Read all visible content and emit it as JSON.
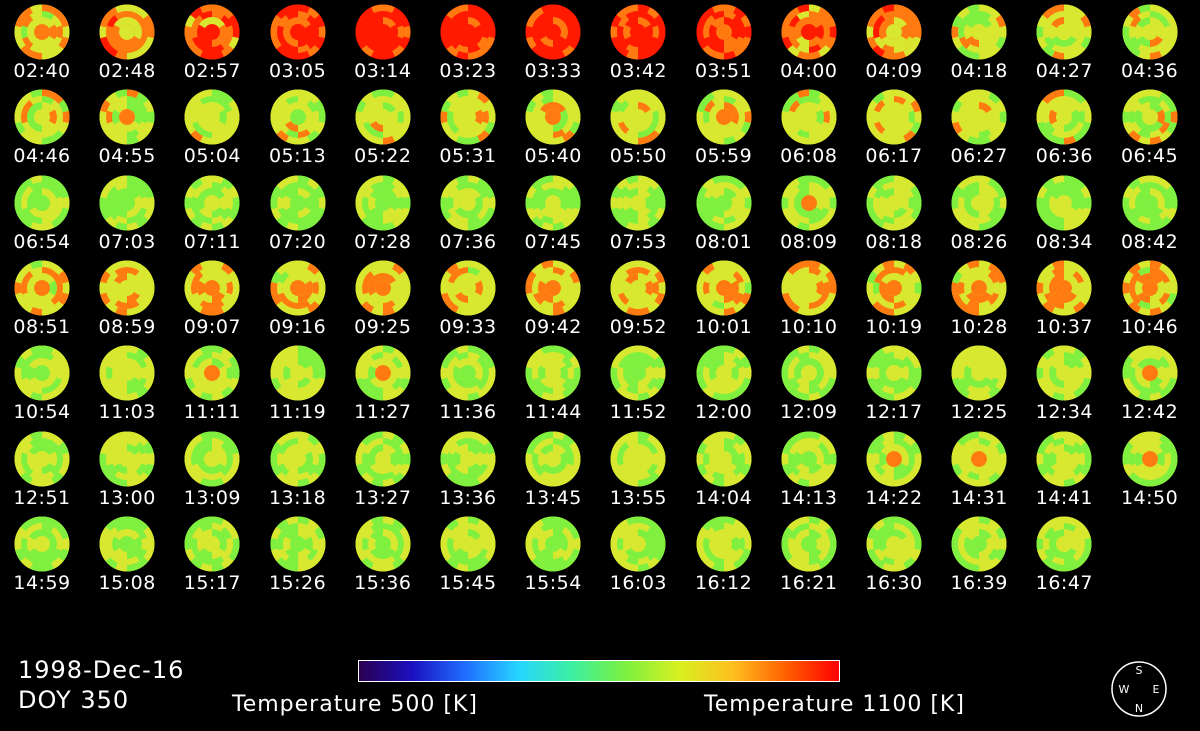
{
  "frames": [
    "02:40",
    "02:48",
    "02:57",
    "03:05",
    "03:14",
    "03:23",
    "03:33",
    "03:42",
    "03:51",
    "04:00",
    "04:09",
    "04:18",
    "04:27",
    "04:36",
    "04:46",
    "04:55",
    "05:04",
    "05:13",
    "05:22",
    "05:31",
    "05:40",
    "05:50",
    "05:59",
    "06:08",
    "06:17",
    "06:27",
    "06:36",
    "06:45",
    "06:54",
    "07:03",
    "07:11",
    "07:20",
    "07:28",
    "07:36",
    "07:45",
    "07:53",
    "08:01",
    "08:09",
    "08:18",
    "08:26",
    "08:34",
    "08:42",
    "08:51",
    "08:59",
    "09:07",
    "09:16",
    "09:25",
    "09:33",
    "09:42",
    "09:52",
    "10:01",
    "10:10",
    "10:19",
    "10:28",
    "10:37",
    "10:46",
    "10:54",
    "11:03",
    "11:11",
    "11:19",
    "11:27",
    "11:36",
    "11:44",
    "11:52",
    "12:00",
    "12:09",
    "12:17",
    "12:25",
    "12:34",
    "12:42",
    "12:51",
    "13:00",
    "13:09",
    "13:18",
    "13:27",
    "13:36",
    "13:45",
    "13:55",
    "14:04",
    "14:13",
    "14:22",
    "14:31",
    "14:41",
    "14:50",
    "14:59",
    "15:08",
    "15:17",
    "15:26",
    "15:36",
    "15:45",
    "15:54",
    "16:03",
    "16:12",
    "16:21",
    "16:30",
    "16:39",
    "16:47"
  ],
  "date": "1998-Dec-16",
  "doy": "DOY 350",
  "colorbar": {
    "min_label": "Temperature 500 [K]",
    "max_label": "Temperature 1100 [K]",
    "min_value": 500,
    "max_value": 1100
  },
  "compass": {
    "top": "S",
    "bottom": "N",
    "left": "W",
    "right": "E"
  },
  "disk_colors": {
    "hot": "#ff1a00",
    "warm": "#ff7a10",
    "mid": "#d8e830",
    "cool": "#80f040",
    "cold": "#40e0c0"
  }
}
